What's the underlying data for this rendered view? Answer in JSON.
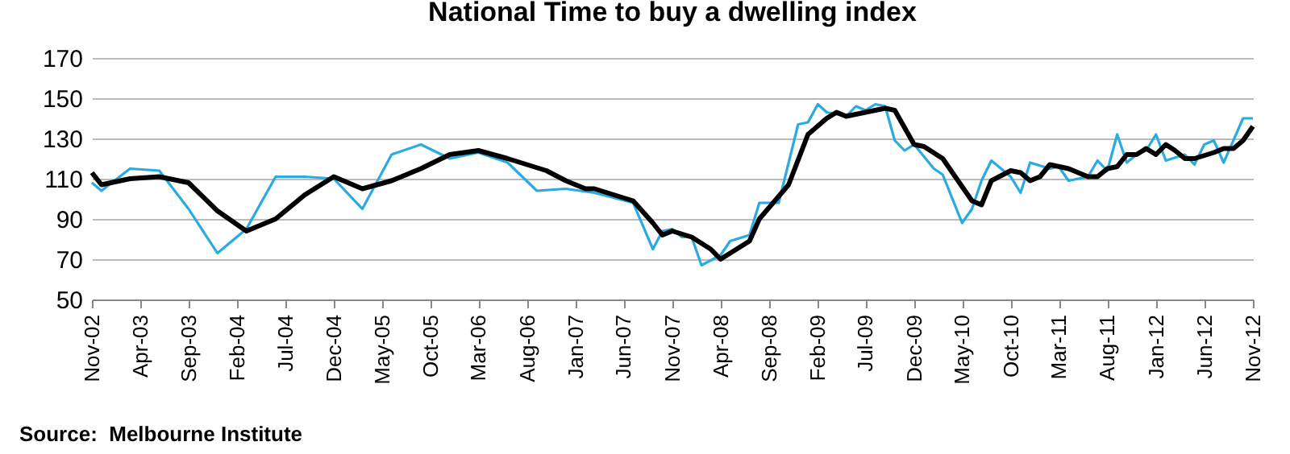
{
  "chart_data": {
    "type": "line",
    "title": "National  Time to buy a dwelling index",
    "annotations": [
      "Source:  Melbourne Institute"
    ],
    "xlim": [
      "2002-11",
      "2012-11"
    ],
    "xticks": [
      {
        "value": "2002-11",
        "label": "Nov-02"
      },
      {
        "value": "2003-04",
        "label": "Apr-03"
      },
      {
        "value": "2003-09",
        "label": "Sep-03"
      },
      {
        "value": "2004-02",
        "label": "Feb-04"
      },
      {
        "value": "2004-07",
        "label": "Jul-04"
      },
      {
        "value": "2004-12",
        "label": "Dec-04"
      },
      {
        "value": "2005-05",
        "label": "May-05"
      },
      {
        "value": "2005-10",
        "label": "Oct-05"
      },
      {
        "value": "2006-03",
        "label": "Mar-06"
      },
      {
        "value": "2006-08",
        "label": "Aug-06"
      },
      {
        "value": "2007-01",
        "label": "Jan-07"
      },
      {
        "value": "2007-06",
        "label": "Jun-07"
      },
      {
        "value": "2007-11",
        "label": "Nov-07"
      },
      {
        "value": "2008-04",
        "label": "Apr-08"
      },
      {
        "value": "2008-09",
        "label": "Sep-08"
      },
      {
        "value": "2009-02",
        "label": "Feb-09"
      },
      {
        "value": "2009-07",
        "label": "Jul-09"
      },
      {
        "value": "2009-12",
        "label": "Dec-09"
      },
      {
        "value": "2010-05",
        "label": "May-10"
      },
      {
        "value": "2010-10",
        "label": "Oct-10"
      },
      {
        "value": "2011-03",
        "label": "Mar-11"
      },
      {
        "value": "2011-08",
        "label": "Aug-11"
      },
      {
        "value": "2012-01",
        "label": "Jan-12"
      },
      {
        "value": "2012-06",
        "label": "Jun-12"
      },
      {
        "value": "2012-11",
        "label": "Nov-12"
      }
    ],
    "ylim": [
      50,
      170
    ],
    "yticks": [
      50,
      70,
      90,
      110,
      130,
      150,
      170
    ],
    "grid": "y",
    "series": [
      {
        "color": "#29abe2",
        "x": [
          "2002-11",
          "2002-12",
          "2003-03",
          "2003-06",
          "2003-09",
          "2003-12",
          "2004-03",
          "2004-06",
          "2004-09",
          "2004-12",
          "2005-03",
          "2005-06",
          "2005-09",
          "2005-12",
          "2006-03",
          "2006-06",
          "2006-09",
          "2006-12",
          "2007-03",
          "2007-07",
          "2007-09",
          "2007-10",
          "2007-11",
          "2007-12",
          "2008-01",
          "2008-02",
          "2008-04",
          "2008-05",
          "2008-07",
          "2008-08",
          "2008-10",
          "2008-12",
          "2009-01",
          "2009-02",
          "2009-03",
          "2009-05",
          "2009-06",
          "2009-07",
          "2009-08",
          "2009-09",
          "2009-10",
          "2009-11",
          "2009-12",
          "2010-02",
          "2010-03",
          "2010-05",
          "2010-06",
          "2010-07",
          "2010-08",
          "2010-10",
          "2010-11",
          "2010-12",
          "2011-02",
          "2011-03",
          "2011-04",
          "2011-06",
          "2011-07",
          "2011-08",
          "2011-09",
          "2011-10",
          "2011-11",
          "2011-12",
          "2012-01",
          "2012-02",
          "2012-04",
          "2012-05",
          "2012-06",
          "2012-07",
          "2012-08",
          "2012-10",
          "2012-11"
        ],
        "values": [
          108,
          104,
          115,
          114,
          95,
          73,
          85,
          111,
          111,
          110,
          95,
          122,
          127,
          120,
          123,
          118,
          104,
          105,
          103,
          98,
          75,
          84,
          85,
          81,
          81,
          67,
          72,
          79,
          82,
          98,
          98,
          137,
          138,
          147,
          143,
          141,
          146,
          144,
          147,
          146,
          129,
          124,
          127,
          115,
          112,
          88,
          95,
          109,
          119,
          111,
          103,
          118,
          115,
          116,
          109,
          111,
          119,
          114,
          132,
          118,
          122,
          124,
          132,
          119,
          122,
          117,
          127,
          129,
          118,
          140,
          140
        ]
      },
      {
        "color": "#000000",
        "x": [
          "2002-11",
          "2002-12",
          "2003-03",
          "2003-06",
          "2003-09",
          "2003-12",
          "2004-03",
          "2004-06",
          "2004-09",
          "2004-12",
          "2005-03",
          "2005-06",
          "2005-09",
          "2005-12",
          "2006-03",
          "2006-06",
          "2006-10",
          "2006-12",
          "2007-02",
          "2007-03",
          "2007-05",
          "2007-07",
          "2007-09",
          "2007-10",
          "2007-11",
          "2008-01",
          "2008-03",
          "2008-04",
          "2008-07",
          "2008-08",
          "2008-11",
          "2009-01",
          "2009-03",
          "2009-04",
          "2009-05",
          "2009-07",
          "2009-09",
          "2009-10",
          "2009-12",
          "2010-01",
          "2010-03",
          "2010-06",
          "2010-07",
          "2010-08",
          "2010-10",
          "2010-11",
          "2010-12",
          "2011-01",
          "2011-02",
          "2011-04",
          "2011-06",
          "2011-07",
          "2011-08",
          "2011-09",
          "2011-10",
          "2011-11",
          "2011-12",
          "2012-01",
          "2012-02",
          "2012-03",
          "2012-04",
          "2012-05",
          "2012-07",
          "2012-08",
          "2012-09",
          "2012-10",
          "2012-11"
        ],
        "values": [
          113,
          107,
          110,
          111,
          108,
          94,
          84,
          90,
          102,
          111,
          105,
          109,
          115,
          122,
          124,
          120,
          114,
          109,
          105,
          105,
          102,
          99,
          88,
          82,
          84,
          81,
          75,
          70,
          79,
          90,
          107,
          132,
          140,
          143,
          141,
          143,
          145,
          144,
          127,
          126,
          120,
          99,
          97,
          109,
          114,
          113,
          109,
          111,
          117,
          115,
          111,
          111,
          115,
          116,
          122,
          122,
          125,
          122,
          127,
          124,
          120,
          120,
          123,
          125,
          125,
          129,
          136
        ]
      }
    ]
  }
}
